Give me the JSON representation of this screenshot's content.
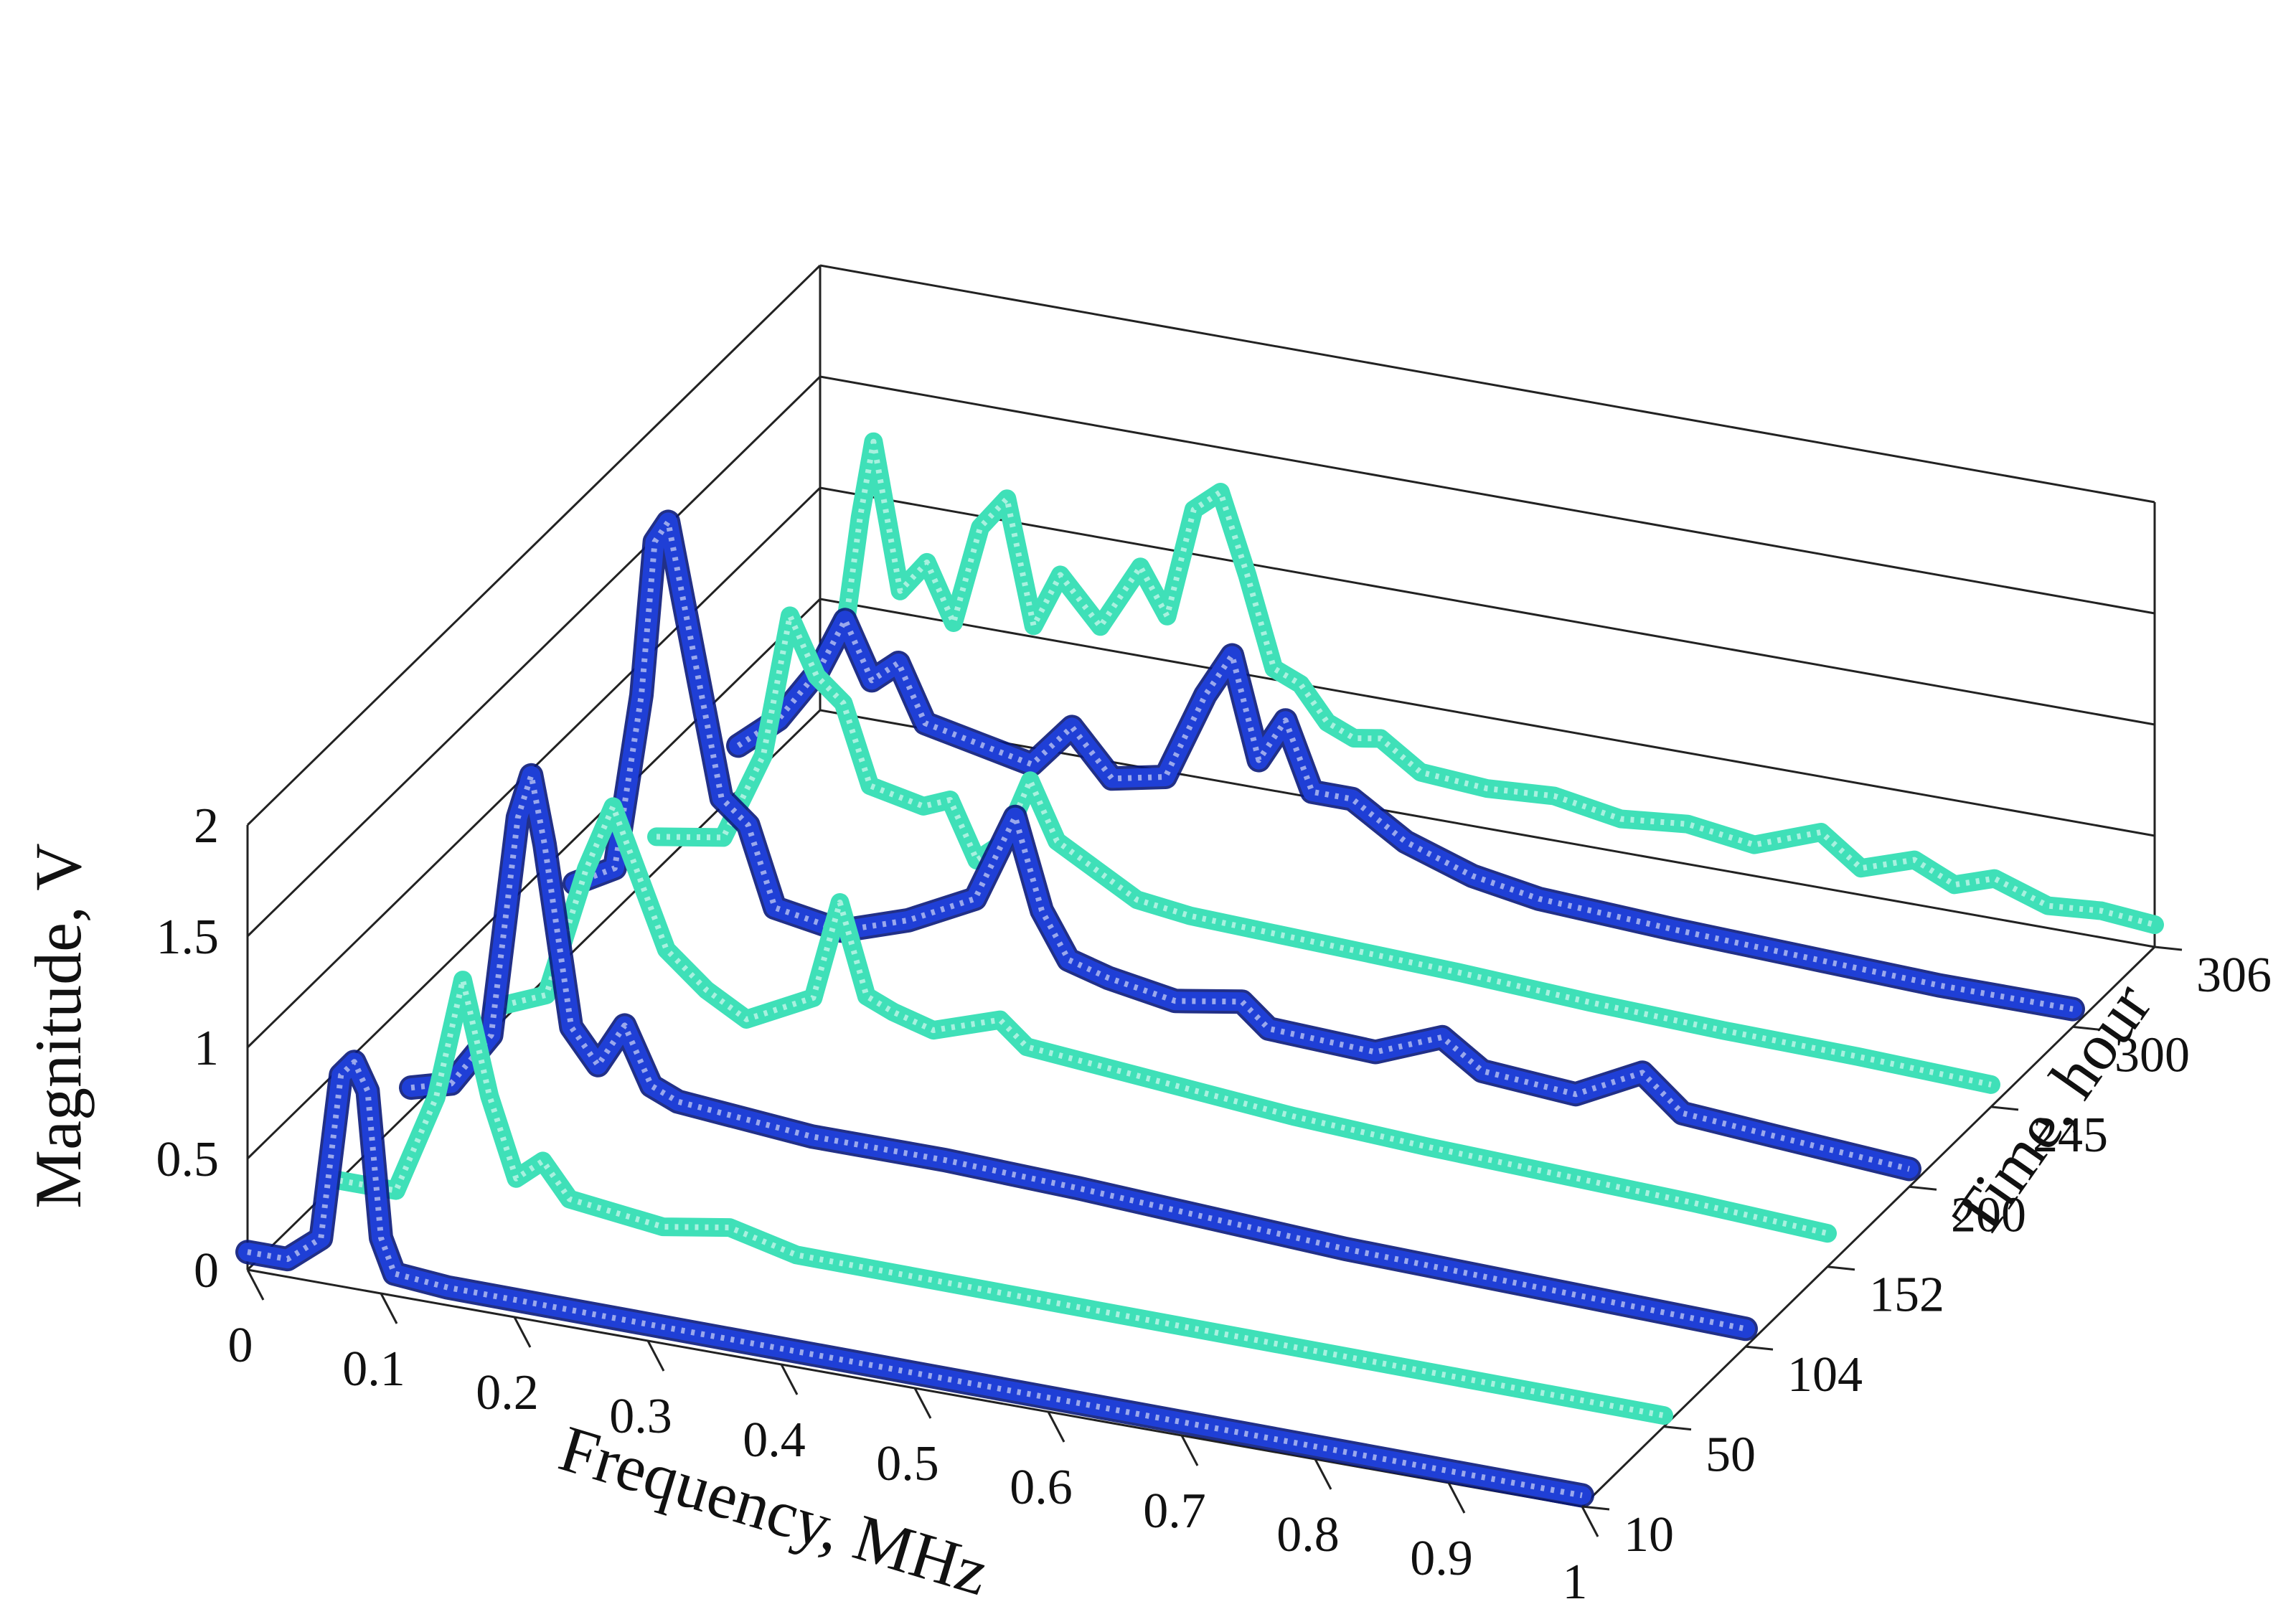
{
  "chart_data": {
    "type": "line",
    "title": "",
    "xlabel": "Frequency, MHz",
    "ylabel": "Time, hour",
    "zlabel": "Magnitude, V",
    "x_ticks": [
      "0",
      "0.1",
      "0.2",
      "0.3",
      "0.4",
      "0.5",
      "0.6",
      "0.7",
      "0.8",
      "0.9",
      "1"
    ],
    "y_ticks": [
      "10",
      "50",
      "104",
      "152",
      "200",
      "245",
      "300",
      "306"
    ],
    "z_ticks": [
      "0",
      "0.5",
      "1",
      "1.5",
      "2"
    ],
    "xlim": [
      0,
      1
    ],
    "zlim": [
      0,
      2
    ],
    "series": [
      {
        "name": "10",
        "color": "#1f3fd6",
        "points": [
          [
            0,
            0.08
          ],
          [
            0.03,
            0.08
          ],
          [
            0.055,
            0.2
          ],
          [
            0.07,
            0.95
          ],
          [
            0.08,
            1.02
          ],
          [
            0.09,
            0.9
          ],
          [
            0.1,
            0.25
          ],
          [
            0.11,
            0.1
          ],
          [
            0.15,
            0.08
          ],
          [
            1,
            0.05
          ]
        ]
      },
      {
        "name": "50",
        "color": "#3fe0b8",
        "points": [
          [
            0,
            0.05
          ],
          [
            0.05,
            0.05
          ],
          [
            0.08,
            0.5
          ],
          [
            0.1,
            1.05
          ],
          [
            0.12,
            0.55
          ],
          [
            0.14,
            0.2
          ],
          [
            0.16,
            0.3
          ],
          [
            0.18,
            0.15
          ],
          [
            0.25,
            0.1
          ],
          [
            0.3,
            0.15
          ],
          [
            0.35,
            0.08
          ],
          [
            1,
            0.05
          ]
        ]
      },
      {
        "name": "104",
        "color": "#1f3fd6",
        "points": [
          [
            0,
            0.1
          ],
          [
            0.03,
            0.15
          ],
          [
            0.06,
            0.4
          ],
          [
            0.08,
            1.4
          ],
          [
            0.09,
            1.6
          ],
          [
            0.1,
            1.3
          ],
          [
            0.12,
            0.5
          ],
          [
            0.14,
            0.35
          ],
          [
            0.16,
            0.55
          ],
          [
            0.18,
            0.3
          ],
          [
            0.2,
            0.25
          ],
          [
            0.3,
            0.2
          ],
          [
            0.4,
            0.2
          ],
          [
            0.5,
            0.18
          ],
          [
            0.6,
            0.15
          ],
          [
            0.7,
            0.12
          ],
          [
            1,
            0.08
          ]
        ]
      },
      {
        "name": "152",
        "color": "#3fe0b8",
        "points": [
          [
            0,
            0.1
          ],
          [
            0.04,
            0.2
          ],
          [
            0.07,
            0.8
          ],
          [
            0.09,
            1.1
          ],
          [
            0.11,
            0.8
          ],
          [
            0.13,
            0.5
          ],
          [
            0.16,
            0.35
          ],
          [
            0.19,
            0.25
          ],
          [
            0.24,
            0.4
          ],
          [
            0.26,
            0.85
          ],
          [
            0.28,
            0.45
          ],
          [
            0.3,
            0.4
          ],
          [
            0.33,
            0.35
          ],
          [
            0.38,
            0.45
          ],
          [
            0.4,
            0.35
          ],
          [
            0.5,
            0.3
          ],
          [
            0.6,
            0.25
          ],
          [
            0.7,
            0.22
          ],
          [
            0.8,
            0.2
          ],
          [
            0.9,
            0.18
          ],
          [
            1,
            0.15
          ]
        ]
      },
      {
        "name": "200",
        "color": "#1f3fd6",
        "points": [
          [
            0,
            0.3
          ],
          [
            0.03,
            0.4
          ],
          [
            0.05,
            1.2
          ],
          [
            0.06,
            1.9
          ],
          [
            0.07,
            2.0
          ],
          [
            0.09,
            1.4
          ],
          [
            0.11,
            0.8
          ],
          [
            0.13,
            0.7
          ],
          [
            0.15,
            0.35
          ],
          [
            0.2,
            0.3
          ],
          [
            0.25,
            0.4
          ],
          [
            0.3,
            0.55
          ],
          [
            0.33,
            0.95
          ],
          [
            0.35,
            0.55
          ],
          [
            0.37,
            0.35
          ],
          [
            0.4,
            0.3
          ],
          [
            0.45,
            0.25
          ],
          [
            0.5,
            0.3
          ],
          [
            0.52,
            0.2
          ],
          [
            0.6,
            0.18
          ],
          [
            0.65,
            0.3
          ],
          [
            0.68,
            0.18
          ],
          [
            0.75,
            0.15
          ],
          [
            0.8,
            0.3
          ],
          [
            0.83,
            0.15
          ],
          [
            0.9,
            0.12
          ],
          [
            0.95,
            0.1
          ],
          [
            1,
            0.08
          ]
        ]
      },
      {
        "name": "245",
        "color": "#3fe0b8",
        "points": [
          [
            0,
            0.15
          ],
          [
            0.05,
            0.2
          ],
          [
            0.08,
            0.6
          ],
          [
            0.1,
            1.25
          ],
          [
            0.12,
            1.0
          ],
          [
            0.14,
            0.9
          ],
          [
            0.16,
            0.55
          ],
          [
            0.2,
            0.5
          ],
          [
            0.22,
            0.55
          ],
          [
            0.24,
            0.3
          ],
          [
            0.26,
            0.4
          ],
          [
            0.28,
            0.7
          ],
          [
            0.3,
            0.45
          ],
          [
            0.33,
            0.35
          ],
          [
            0.36,
            0.25
          ],
          [
            0.4,
            0.22
          ],
          [
            0.5,
            0.2
          ],
          [
            0.6,
            0.18
          ],
          [
            0.7,
            0.15
          ],
          [
            0.8,
            0.13
          ],
          [
            0.9,
            0.12
          ],
          [
            1,
            0.1
          ]
        ]
      },
      {
        "name": "300",
        "color": "#1f3fd6",
        "points": [
          [
            0,
            0.2
          ],
          [
            0.03,
            0.35
          ],
          [
            0.06,
            0.6
          ],
          [
            0.08,
            0.85
          ],
          [
            0.1,
            0.6
          ],
          [
            0.12,
            0.7
          ],
          [
            0.14,
            0.45
          ],
          [
            0.18,
            0.4
          ],
          [
            0.22,
            0.35
          ],
          [
            0.25,
            0.55
          ],
          [
            0.28,
            0.35
          ],
          [
            0.32,
            0.4
          ],
          [
            0.35,
            0.8
          ],
          [
            0.37,
            1.0
          ],
          [
            0.39,
            0.55
          ],
          [
            0.41,
            0.75
          ],
          [
            0.43,
            0.45
          ],
          [
            0.46,
            0.45
          ],
          [
            0.5,
            0.3
          ],
          [
            0.55,
            0.2
          ],
          [
            0.6,
            0.15
          ],
          [
            0.7,
            0.12
          ],
          [
            0.8,
            0.1
          ],
          [
            0.9,
            0.08
          ],
          [
            1,
            0.08
          ]
        ]
      },
      {
        "name": "306",
        "color": "#3fe0b8",
        "points": [
          [
            0,
            0.2
          ],
          [
            0.02,
            0.45
          ],
          [
            0.03,
            0.9
          ],
          [
            0.04,
            1.25
          ],
          [
            0.06,
            0.6
          ],
          [
            0.08,
            0.75
          ],
          [
            0.1,
            0.5
          ],
          [
            0.12,
            0.95
          ],
          [
            0.14,
            1.1
          ],
          [
            0.16,
            0.55
          ],
          [
            0.18,
            0.8
          ],
          [
            0.21,
            0.6
          ],
          [
            0.24,
            0.9
          ],
          [
            0.26,
            0.7
          ],
          [
            0.28,
            1.2
          ],
          [
            0.3,
            1.3
          ],
          [
            0.32,
            0.95
          ],
          [
            0.34,
            0.55
          ],
          [
            0.36,
            0.5
          ],
          [
            0.38,
            0.35
          ],
          [
            0.4,
            0.3
          ],
          [
            0.42,
            0.32
          ],
          [
            0.45,
            0.2
          ],
          [
            0.5,
            0.18
          ],
          [
            0.55,
            0.2
          ],
          [
            0.6,
            0.15
          ],
          [
            0.65,
            0.18
          ],
          [
            0.7,
            0.14
          ],
          [
            0.75,
            0.25
          ],
          [
            0.78,
            0.12
          ],
          [
            0.82,
            0.2
          ],
          [
            0.85,
            0.12
          ],
          [
            0.88,
            0.18
          ],
          [
            0.92,
            0.1
          ],
          [
            0.96,
            0.12
          ],
          [
            1,
            0.1
          ]
        ]
      }
    ]
  }
}
